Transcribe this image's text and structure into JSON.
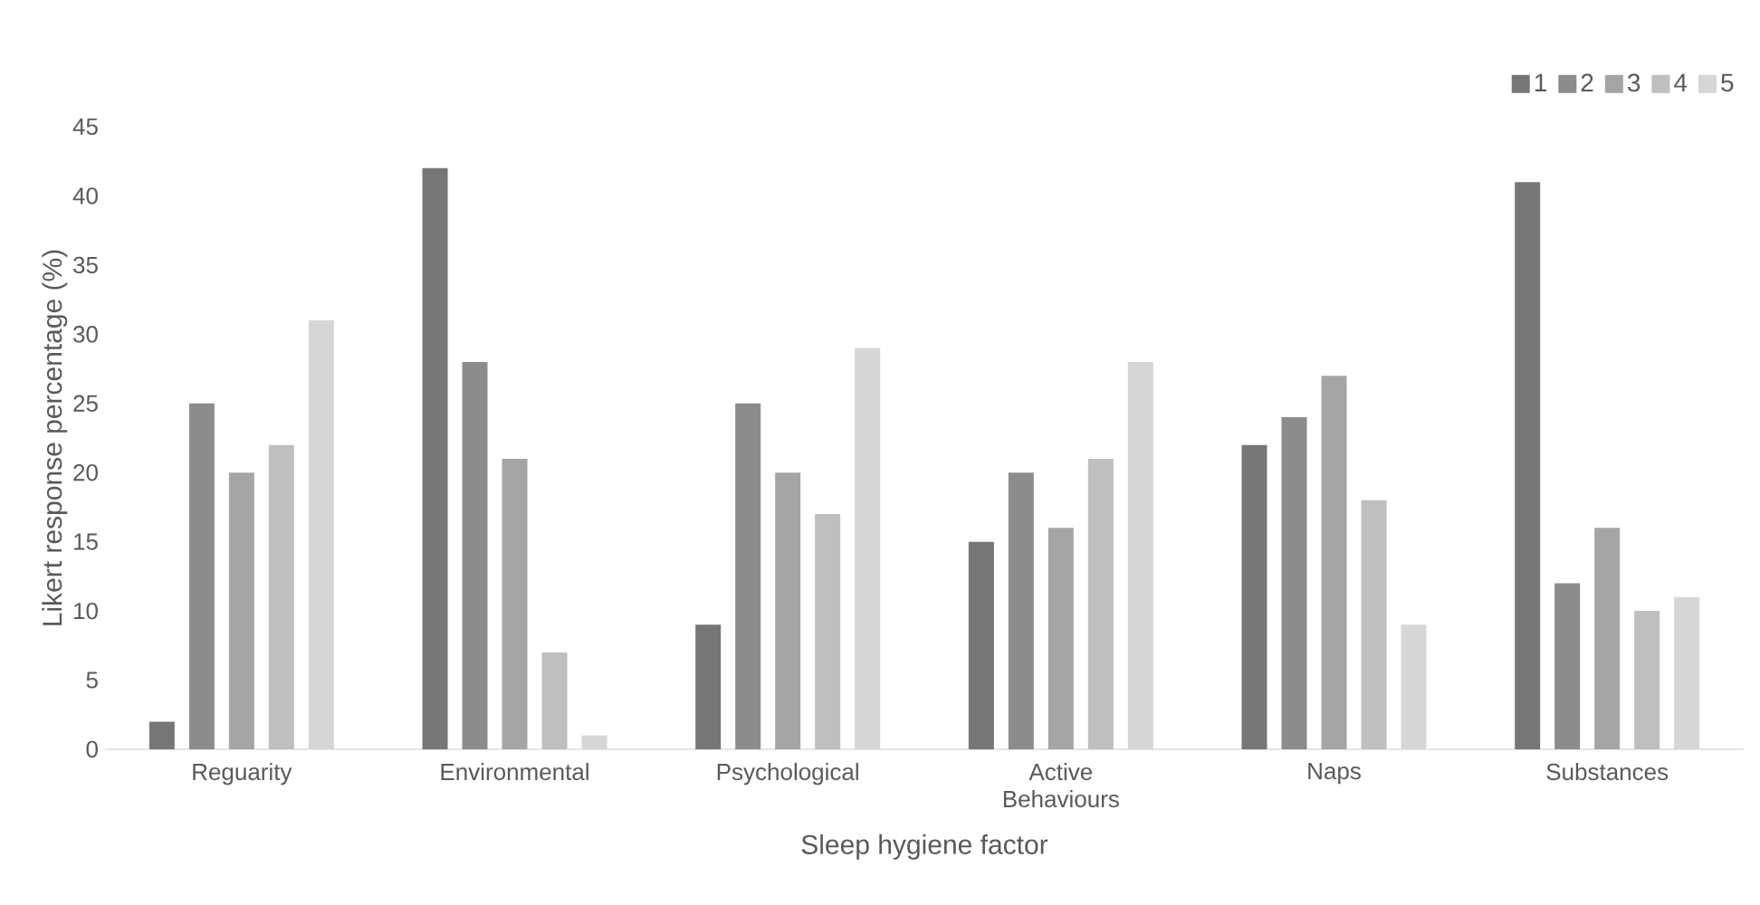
{
  "chart_data": {
    "type": "bar",
    "xlabel": "Sleep hygiene factor",
    "ylabel": "Likert response percentage (%)",
    "categories": [
      "Reguarity",
      "Environmental",
      "Psychological",
      "Active Behaviours",
      "Naps",
      "Substances"
    ],
    "series": [
      {
        "name": "1",
        "color": "#767676",
        "values": [
          2,
          42,
          9,
          15,
          22,
          41
        ]
      },
      {
        "name": "2",
        "color": "#8c8c8c",
        "values": [
          25,
          28,
          25,
          20,
          24,
          12
        ]
      },
      {
        "name": "3",
        "color": "#a5a5a5",
        "values": [
          20,
          21,
          20,
          16,
          27,
          16
        ]
      },
      {
        "name": "4",
        "color": "#bfbfbf",
        "values": [
          22,
          7,
          17,
          21,
          18,
          10
        ]
      },
      {
        "name": "5",
        "color": "#d6d6d6",
        "values": [
          31,
          1,
          29,
          28,
          9,
          11
        ]
      }
    ],
    "ylim": [
      0,
      45
    ],
    "yticks": [
      0,
      5,
      10,
      15,
      20,
      25,
      30,
      35,
      40,
      45
    ],
    "legend": "top right"
  }
}
